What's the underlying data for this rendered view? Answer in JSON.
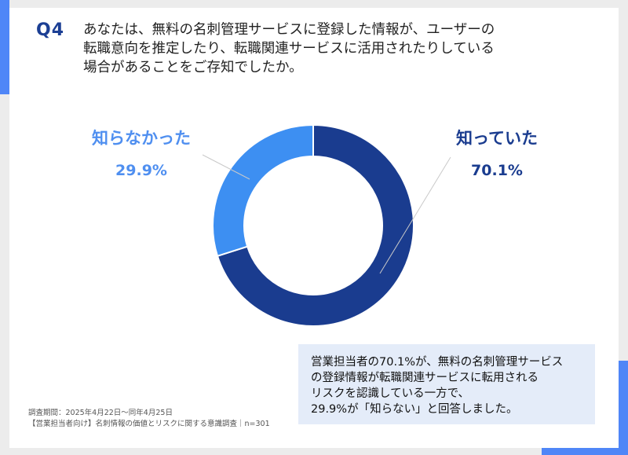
{
  "question": {
    "label": "Q4",
    "lines": [
      "あなたは、無料の名刺管理サービスに登録した情報が、ユーザーの",
      "転職意向を推定したり、転職関連サービスに活用されたりしている",
      "場合があることをご存知でしたか。"
    ]
  },
  "chart_data": {
    "type": "pie",
    "donut": true,
    "categories": [
      "知っていた",
      "知らなかった"
    ],
    "values": [
      70.1,
      29.9
    ],
    "value_labels": [
      "70.1%",
      "29.9%"
    ],
    "colors": [
      "#1a3c8f",
      "#3d8ff2"
    ],
    "start": "top, clockwise"
  },
  "labels": {
    "left_name": "知らなかった",
    "left_pct": "29.9%",
    "right_name": "知っていた",
    "right_pct": "70.1%"
  },
  "summary": {
    "lines": [
      "営業担当者の70.1%が、無料の名刺管理サービス",
      "の登録情報が転職関連サービスに転用される",
      "リスクを認識している一方で、",
      "29.9%が「知らない」と回答しました。"
    ]
  },
  "source": {
    "lines": [
      "調査期間：2025年4月22日～同年4月25日",
      "【営業担当者向け】名刺情報の価値とリスクに関する意識調査｜n=301"
    ]
  }
}
